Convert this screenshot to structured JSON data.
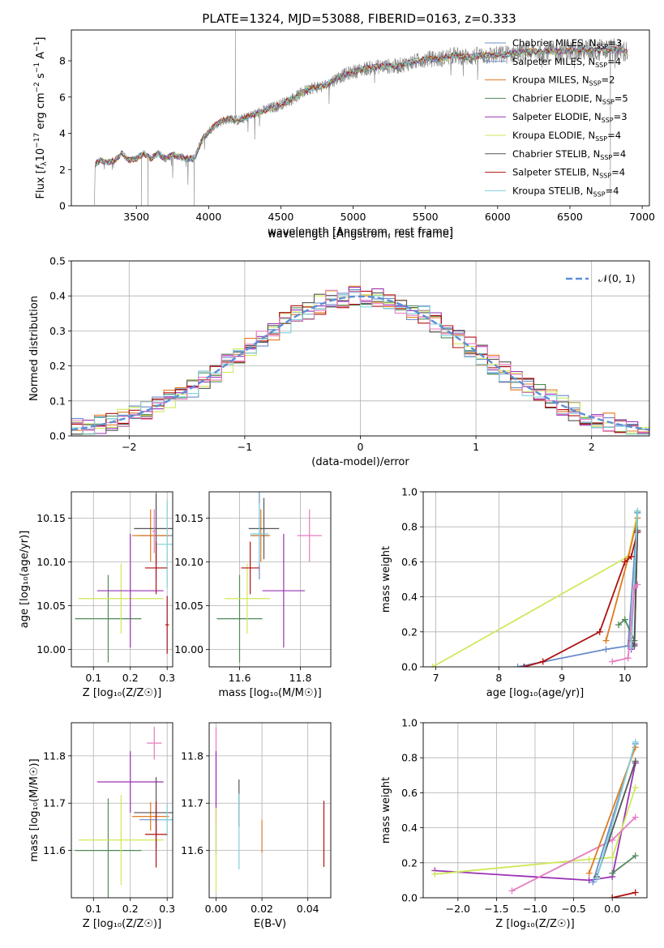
{
  "figure": {
    "title": "PLATE=1324, MJD=53088, FIBERID=0163, z=0.333"
  },
  "colors": {
    "data": "#7f7f7f",
    "chabrier_miles": "#6a8ccc",
    "salpeter_miles": "#6a8ccc",
    "kroupa_miles": "#e07a20",
    "chabrier_elodie": "#4f8a5a",
    "salpeter_elodie": "#9a32b4",
    "kroupa_elodie": "#cfe85a",
    "chabrier_stelib": "#555555",
    "salpeter_stelib": "#b01010",
    "kroupa_stelib": "#7fd1dc",
    "pink": "#e77bc0",
    "gauss": "#5b8fd6",
    "grid": "#b0b0b0"
  },
  "chart_data": [
    {
      "id": "spectrum",
      "type": "line",
      "title": "PLATE=1324, MJD=53088, FIBERID=0163, z=0.333",
      "xlabel": "wavelength [Angstrom, rest frame]",
      "ylabel_parts": [
        "Flux [",
        "f",
        "λ",
        "10",
        "−17",
        " erg cm",
        "−2",
        " s",
        "−1",
        " A",
        "−1",
        "]"
      ],
      "xlim": [
        3050,
        7050
      ],
      "ylim": [
        0,
        9.7
      ],
      "xticks": [
        3500,
        4000,
        4500,
        5000,
        5500,
        6000,
        6500,
        7000
      ],
      "yticks": [
        0,
        2,
        4,
        6,
        8
      ],
      "grid": false,
      "continuum": [
        [
          3210,
          0
        ],
        [
          3215,
          2.3
        ],
        [
          3250,
          2.5
        ],
        [
          3300,
          2.4
        ],
        [
          3350,
          2.5
        ],
        [
          3400,
          2.9
        ],
        [
          3450,
          2.5
        ],
        [
          3500,
          2.6
        ],
        [
          3550,
          2.9
        ],
        [
          3600,
          2.6
        ],
        [
          3650,
          2.9
        ],
        [
          3700,
          2.6
        ],
        [
          3750,
          2.8
        ],
        [
          3800,
          2.7
        ],
        [
          3850,
          2.6
        ],
        [
          3900,
          2.6
        ],
        [
          3950,
          3.6
        ],
        [
          4000,
          4.1
        ],
        [
          4050,
          4.5
        ],
        [
          4100,
          4.7
        ],
        [
          4150,
          4.8
        ],
        [
          4200,
          4.7
        ],
        [
          4300,
          5.0
        ],
        [
          4400,
          5.3
        ],
        [
          4500,
          5.6
        ],
        [
          4600,
          6.0
        ],
        [
          4700,
          6.5
        ],
        [
          4800,
          6.6
        ],
        [
          4900,
          7.1
        ],
        [
          5000,
          7.4
        ],
        [
          5100,
          7.6
        ],
        [
          5200,
          7.7
        ],
        [
          5300,
          7.7
        ],
        [
          5400,
          7.9
        ],
        [
          5500,
          8.1
        ],
        [
          5600,
          8.1
        ],
        [
          5700,
          8.3
        ],
        [
          5800,
          8.2
        ],
        [
          5900,
          8.3
        ],
        [
          6000,
          8.3
        ],
        [
          6200,
          8.5
        ],
        [
          6400,
          8.5
        ],
        [
          6600,
          8.6
        ],
        [
          6800,
          8.6
        ],
        [
          6900,
          8.5
        ]
      ],
      "legend_position": "top-right",
      "legend": [
        {
          "label": "Chabrier MILES, N",
          "sub": "SSP",
          "suffix": "=3",
          "key": "chabrier_miles"
        },
        {
          "label": "Salpeter MILES, N",
          "sub": "SSP",
          "suffix": "=4",
          "key": "salpeter_miles"
        },
        {
          "label": "Kroupa MILES, N",
          "sub": "SSP",
          "suffix": "=2",
          "key": "kroupa_miles"
        },
        {
          "label": "Chabrier ELODIE, N",
          "sub": "SSP",
          "suffix": "=5",
          "key": "chabrier_elodie"
        },
        {
          "label": "Salpeter ELODIE, N",
          "sub": "SSP",
          "suffix": "=3",
          "key": "salpeter_elodie"
        },
        {
          "label": "Kroupa ELODIE, N",
          "sub": "SSP",
          "suffix": "=4",
          "key": "kroupa_elodie"
        },
        {
          "label": "Chabrier STELIB, N",
          "sub": "SSP",
          "suffix": "=4",
          "key": "chabrier_stelib"
        },
        {
          "label": "Salpeter STELIB, N",
          "sub": "SSP",
          "suffix": "=4",
          "key": "salpeter_stelib"
        },
        {
          "label": "Kroupa STELIB, N",
          "sub": "SSP",
          "suffix": "=4",
          "key": "kroupa_stelib"
        }
      ]
    },
    {
      "id": "residuals",
      "type": "line",
      "xlabel": "(data-model)/error",
      "ylabel": "Normed distribution",
      "xlim": [
        -2.5,
        2.5
      ],
      "ylim": [
        0,
        0.5
      ],
      "xticks": [
        -2,
        -1,
        0,
        1,
        2
      ],
      "yticks": [
        0,
        0.1,
        0.2,
        0.3,
        0.4,
        0.5
      ],
      "grid": true,
      "bin_width": 0.1,
      "legend_position": "top-right",
      "gauss_label": "𝒩(0, 1)",
      "series_keys": [
        "chabrier_miles",
        "kroupa_miles",
        "chabrier_elodie",
        "salpeter_elodie",
        "kroupa_elodie",
        "chabrier_stelib",
        "salpeter_stelib",
        "kroupa_stelib",
        "pink"
      ]
    },
    {
      "id": "age_vs_Z",
      "type": "scatter",
      "xlabel": "Z [log₁₀(Z/Z☉)]",
      "ylabel": "age  [log₁₀(age/yr)]",
      "xlim": [
        0.04,
        0.315
      ],
      "ylim": [
        9.98,
        10.18
      ],
      "xticks": [
        0.1,
        0.2,
        0.3
      ],
      "yticks": [
        10.0,
        10.05,
        10.1,
        10.15
      ],
      "grid": true,
      "points": [
        {
          "key": "chabrier_elodie",
          "x": 0.14,
          "y": 10.035,
          "xerr": 0.09,
          "yerr": 0.05
        },
        {
          "key": "kroupa_elodie",
          "x": 0.175,
          "y": 10.058,
          "xerr": 0.115,
          "yerr": 0.04
        },
        {
          "key": "salpeter_elodie",
          "x": 0.2,
          "y": 10.067,
          "xerr": 0.09,
          "yerr": 0.065
        },
        {
          "key": "chabrier_miles",
          "x": 0.27,
          "y": 10.13,
          "xerr": 0.045,
          "yerr": 0.05
        },
        {
          "key": "kroupa_miles",
          "x": 0.255,
          "y": 10.13,
          "xerr": 0.05,
          "yerr": 0.03
        },
        {
          "key": "chabrier_stelib",
          "x": 0.27,
          "y": 10.138,
          "xerr": 0.06,
          "yerr": 0.04
        },
        {
          "key": "kroupa_stelib",
          "x": 0.3,
          "y": 10.12,
          "xerr": 0.03,
          "yerr": 0.05
        },
        {
          "key": "salpeter_stelib",
          "x": 0.3,
          "y": 10.028,
          "xerr": 0.005,
          "yerr": 0.033
        },
        {
          "key": "salpeter_stelib",
          "x": 0.27,
          "y": 10.093,
          "xerr": 0.03,
          "yerr": 0.03
        },
        {
          "key": "pink",
          "x": 0.265,
          "y": 10.135,
          "xerr": 0.005,
          "yerr": 0.025
        }
      ]
    },
    {
      "id": "age_vs_mass",
      "type": "scatter",
      "xlabel": "mass [log₁₀(M/M☉)]",
      "xlim": [
        11.5,
        11.9
      ],
      "ylim": [
        9.98,
        10.18
      ],
      "xticks": [
        11.6,
        11.8
      ],
      "yticks": [
        10.0,
        10.05,
        10.1,
        10.15
      ],
      "grid": true,
      "points": [
        {
          "key": "chabrier_elodie",
          "x": 11.6,
          "y": 10.035,
          "xerr": 0.075,
          "yerr": 0.05
        },
        {
          "key": "kroupa_elodie",
          "x": 11.625,
          "y": 10.058,
          "xerr": 0.075,
          "yerr": 0.04
        },
        {
          "key": "salpeter_elodie",
          "x": 11.745,
          "y": 10.067,
          "xerr": 0.07,
          "yerr": 0.065
        },
        {
          "key": "chabrier_miles",
          "x": 11.665,
          "y": 10.13,
          "xerr": 0.03,
          "yerr": 0.05
        },
        {
          "key": "kroupa_miles",
          "x": 11.67,
          "y": 10.13,
          "xerr": 0.03,
          "yerr": 0.03
        },
        {
          "key": "chabrier_stelib",
          "x": 11.68,
          "y": 10.138,
          "xerr": 0.05,
          "yerr": 0.035
        },
        {
          "key": "kroupa_stelib",
          "x": 11.665,
          "y": 10.132,
          "xerr": 0.03,
          "yerr": 0.035
        },
        {
          "key": "salpeter_stelib",
          "x": 11.635,
          "y": 10.093,
          "xerr": 0.03,
          "yerr": 0.03
        },
        {
          "key": "pink",
          "x": 11.83,
          "y": 10.13,
          "xerr": 0.04,
          "yerr": 0.03
        }
      ]
    },
    {
      "id": "massweight_vs_age",
      "type": "line",
      "xlabel": "age  [log₁₀(age/yr)]",
      "ylabel": "mass weight",
      "xlim": [
        6.8,
        10.35
      ],
      "ylim": [
        0,
        1
      ],
      "xticks": [
        7,
        8,
        9,
        10
      ],
      "yticks": [
        0,
        0.2,
        0.4,
        0.6,
        0.8,
        1.0
      ],
      "grid": true,
      "series": [
        {
          "key": "kroupa_elodie",
          "points": [
            [
              6.95,
              0.0
            ],
            [
              10.05,
              0.63
            ],
            [
              10.2,
              0.88
            ]
          ]
        },
        {
          "key": "chabrier_miles",
          "points": [
            [
              8.3,
              0.0
            ],
            [
              9.7,
              0.1
            ],
            [
              10.05,
              0.12
            ],
            [
              10.2,
              0.88
            ]
          ]
        },
        {
          "key": "kroupa_miles",
          "points": [
            [
              9.7,
              0.15
            ],
            [
              10.05,
              0.62
            ],
            [
              10.2,
              0.85
            ]
          ]
        },
        {
          "key": "chabrier_elodie",
          "points": [
            [
              9.9,
              0.24
            ],
            [
              10.0,
              0.27
            ],
            [
              10.15,
              0.15
            ],
            [
              10.2,
              0.89
            ]
          ]
        },
        {
          "key": "salpeter_elodie",
          "points": [
            [
              10.1,
              0.1
            ],
            [
              10.15,
              0.13
            ],
            [
              10.2,
              0.77
            ]
          ]
        },
        {
          "key": "salpeter_stelib",
          "points": [
            [
              8.4,
              0.0
            ],
            [
              8.7,
              0.03
            ],
            [
              9.6,
              0.2
            ],
            [
              10.0,
              0.6
            ],
            [
              10.1,
              0.63
            ],
            [
              10.2,
              0.77
            ]
          ]
        },
        {
          "key": "chabrier_stelib",
          "points": [
            [
              10.1,
              0.15
            ],
            [
              10.15,
              0.12
            ],
            [
              10.2,
              0.78
            ]
          ]
        },
        {
          "key": "kroupa_stelib",
          "points": [
            [
              10.1,
              0.11
            ],
            [
              10.2,
              0.89
            ]
          ]
        },
        {
          "key": "pink",
          "points": [
            [
              9.8,
              0.03
            ],
            [
              10.05,
              0.05
            ],
            [
              10.15,
              0.45
            ],
            [
              10.2,
              0.47
            ]
          ]
        }
      ]
    },
    {
      "id": "mass_vs_Z",
      "type": "scatter",
      "xlabel": "Z [log₁₀(Z/Z☉)]",
      "ylabel": "mass [log₁₀(M/M☉)]",
      "xlim": [
        0.04,
        0.315
      ],
      "ylim": [
        11.5,
        11.87
      ],
      "xticks": [
        0.1,
        0.2,
        0.3
      ],
      "yticks": [
        11.6,
        11.7,
        11.8
      ],
      "grid": true,
      "points": [
        {
          "key": "chabrier_elodie",
          "x": 0.14,
          "y": 11.6,
          "xerr": 0.09,
          "yerr": 0.11
        },
        {
          "key": "kroupa_elodie",
          "x": 0.175,
          "y": 11.622,
          "xerr": 0.115,
          "yerr": 0.095
        },
        {
          "key": "salpeter_elodie",
          "x": 0.2,
          "y": 11.745,
          "xerr": 0.09,
          "yerr": 0.065
        },
        {
          "key": "chabrier_miles",
          "x": 0.27,
          "y": 11.665,
          "xerr": 0.045,
          "yerr": 0.03
        },
        {
          "key": "kroupa_miles",
          "x": 0.255,
          "y": 11.672,
          "xerr": 0.05,
          "yerr": 0.03
        },
        {
          "key": "chabrier_stelib",
          "x": 0.27,
          "y": 11.68,
          "xerr": 0.06,
          "yerr": 0.075
        },
        {
          "key": "kroupa_stelib",
          "x": 0.3,
          "y": 11.665,
          "xerr": 0.03,
          "yerr": 0.035
        },
        {
          "key": "salpeter_stelib",
          "x": 0.27,
          "y": 11.634,
          "xerr": 0.03,
          "yerr": 0.07
        },
        {
          "key": "pink",
          "x": 0.265,
          "y": 11.827,
          "xerr": 0.02,
          "yerr": 0.035
        }
      ]
    },
    {
      "id": "mass_vs_ebv",
      "type": "scatter",
      "xlabel": "E(B-V)",
      "xlim": [
        -0.003,
        0.05
      ],
      "ylim": [
        11.5,
        11.87
      ],
      "xticks": [
        0.0,
        0.02,
        0.04
      ],
      "yticks": [
        11.6,
        11.7,
        11.8
      ],
      "grid": true,
      "points": [
        {
          "key": "pink",
          "x": 0.0,
          "y": 11.76,
          "xerr": 0,
          "yerr": 0.1
        },
        {
          "key": "salpeter_elodie",
          "x": 0.0,
          "y": 11.7,
          "xerr": 0,
          "yerr": 0.11
        },
        {
          "key": "kroupa_elodie",
          "x": 0.0,
          "y": 11.6,
          "xerr": 0,
          "yerr": 0.09
        },
        {
          "key": "chabrier_stelib",
          "x": 0.01,
          "y": 11.7,
          "xerr": 0,
          "yerr": 0.05
        },
        {
          "key": "kroupa_stelib",
          "x": 0.01,
          "y": 11.64,
          "xerr": 0,
          "yerr": 0.08
        },
        {
          "key": "kroupa_miles",
          "x": 0.02,
          "y": 11.63,
          "xerr": 0,
          "yerr": 0.035
        },
        {
          "key": "salpeter_stelib",
          "x": 0.047,
          "y": 11.635,
          "xerr": 0,
          "yerr": 0.07
        }
      ]
    },
    {
      "id": "massweight_vs_Z",
      "type": "line",
      "xlabel": "Z [log₁₀(Z/Z☉)]",
      "ylabel": "mass weight",
      "xlim": [
        -2.45,
        0.45
      ],
      "ylim": [
        0,
        1
      ],
      "xticks": [
        -2.0,
        -1.5,
        -1.0,
        -0.5,
        0.0
      ],
      "yticks": [
        0,
        0.2,
        0.4,
        0.6,
        0.8,
        1.0
      ],
      "grid": true,
      "series": [
        {
          "key": "salpeter_elodie",
          "points": [
            [
              -2.3,
              0.155
            ],
            [
              -0.3,
              0.1
            ],
            [
              0.0,
              0.12
            ],
            [
              0.3,
              0.77
            ]
          ]
        },
        {
          "key": "kroupa_elodie",
          "points": [
            [
              -2.3,
              0.135
            ],
            [
              -0.3,
              0.22
            ],
            [
              0.0,
              0.23
            ],
            [
              0.3,
              0.63
            ]
          ]
        },
        {
          "key": "pink",
          "points": [
            [
              -1.3,
              0.04
            ],
            [
              0.0,
              0.33
            ],
            [
              0.3,
              0.46
            ]
          ]
        },
        {
          "key": "chabrier_miles",
          "points": [
            [
              -0.25,
              0.09
            ],
            [
              0.3,
              0.88
            ]
          ]
        },
        {
          "key": "kroupa_miles",
          "points": [
            [
              -0.3,
              0.14
            ],
            [
              0.3,
              0.86
            ]
          ]
        },
        {
          "key": "chabrier_elodie",
          "points": [
            [
              0.0,
              0.14
            ],
            [
              0.3,
              0.24
            ]
          ]
        },
        {
          "key": "chabrier_stelib",
          "points": [
            [
              -0.2,
              0.12
            ],
            [
              0.3,
              0.78
            ]
          ]
        },
        {
          "key": "salpeter_stelib",
          "points": [
            [
              0.0,
              0.0
            ],
            [
              0.3,
              0.03
            ]
          ]
        },
        {
          "key": "kroupa_stelib",
          "points": [
            [
              -0.2,
              0.11
            ],
            [
              0.3,
              0.89
            ]
          ]
        }
      ]
    }
  ]
}
